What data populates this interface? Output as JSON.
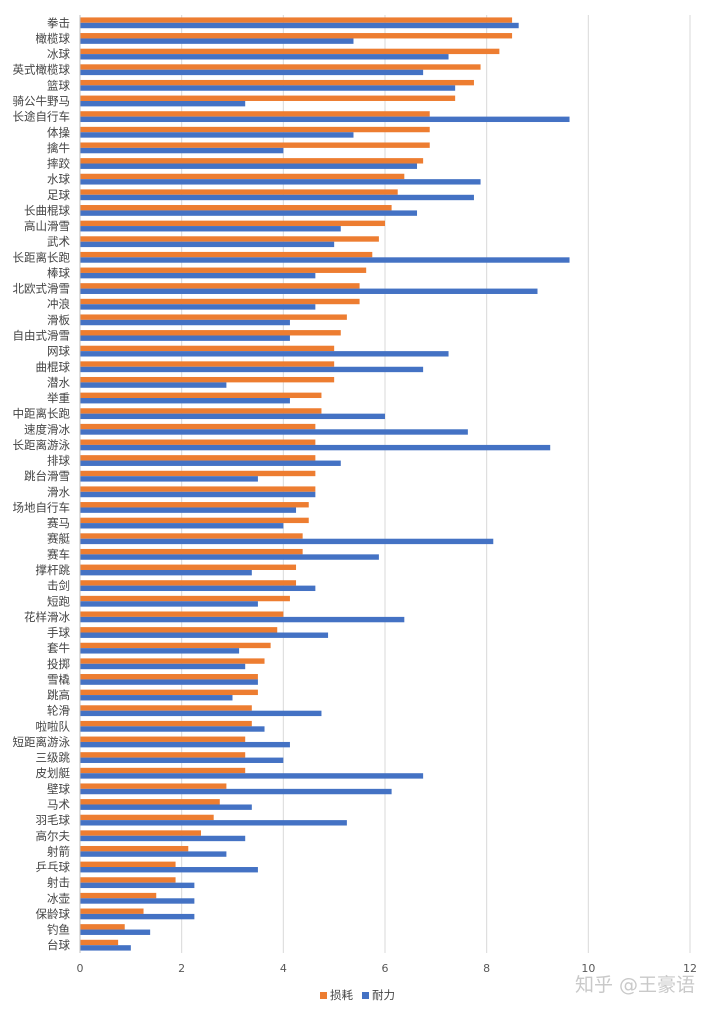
{
  "chart_data": {
    "type": "bar",
    "orientation": "horizontal",
    "categories": [
      "拳击",
      "橄榄球",
      "冰球",
      "英式橄榄球",
      "篮球",
      "骑公牛野马",
      "长途自行车",
      "体操",
      "擒牛",
      "摔跤",
      "水球",
      "足球",
      "长曲棍球",
      "高山滑雪",
      "武术",
      "长距离长跑",
      "棒球",
      "北欧式滑雪",
      "冲浪",
      "滑板",
      "自由式滑雪",
      "网球",
      "曲棍球",
      "潜水",
      "举重",
      "中距离长跑",
      "速度滑冰",
      "长距离游泳",
      "排球",
      "跳台滑雪",
      "滑水",
      "场地自行车",
      "赛马",
      "赛艇",
      "赛车",
      "撑杆跳",
      "击剑",
      "短跑",
      "花样滑冰",
      "手球",
      "套牛",
      "投掷",
      "雪橇",
      "跳高",
      "轮滑",
      "啦啦队",
      "短距离游泳",
      "三级跳",
      "皮划艇",
      "壁球",
      "马术",
      "羽毛球",
      "高尔夫",
      "射箭",
      "乒乓球",
      "射击",
      "冰壶",
      "保龄球",
      "钓鱼",
      "台球"
    ],
    "series": [
      {
        "name": "损耗",
        "color": "#ED7D31",
        "values": [
          8.5,
          8.5,
          8.25,
          7.88,
          7.75,
          7.38,
          6.88,
          6.88,
          6.88,
          6.75,
          6.38,
          6.25,
          6.13,
          6.0,
          5.88,
          5.75,
          5.63,
          5.5,
          5.5,
          5.25,
          5.13,
          5.0,
          5.0,
          5.0,
          4.75,
          4.75,
          4.63,
          4.63,
          4.63,
          4.63,
          4.63,
          4.5,
          4.5,
          4.38,
          4.38,
          4.25,
          4.25,
          4.13,
          4.0,
          3.88,
          3.75,
          3.63,
          3.5,
          3.5,
          3.38,
          3.38,
          3.25,
          3.25,
          3.25,
          2.88,
          2.75,
          2.63,
          2.38,
          2.13,
          1.88,
          1.88,
          1.5,
          1.25,
          0.88,
          0.75
        ]
      },
      {
        "name": "耐力",
        "color": "#4472C4",
        "values": [
          8.63,
          5.38,
          7.25,
          6.75,
          7.38,
          3.25,
          9.63,
          5.38,
          4.0,
          6.63,
          7.88,
          7.75,
          6.63,
          5.13,
          5.0,
          9.63,
          4.63,
          9.0,
          4.63,
          4.13,
          4.13,
          7.25,
          6.75,
          2.88,
          4.13,
          6.0,
          7.63,
          9.25,
          5.13,
          3.5,
          4.63,
          4.25,
          4.0,
          8.13,
          5.88,
          3.38,
          4.63,
          3.5,
          6.38,
          4.88,
          3.13,
          3.25,
          3.5,
          3.0,
          4.75,
          3.63,
          4.13,
          4.0,
          6.75,
          6.13,
          3.38,
          5.25,
          3.25,
          2.88,
          3.5,
          2.25,
          2.25,
          2.25,
          1.38,
          1.0
        ]
      }
    ],
    "x_ticks": [
      "0",
      "2",
      "4",
      "6",
      "8",
      "10",
      "12"
    ],
    "xlim": [
      0,
      12
    ],
    "grid": "vertical",
    "legend_position": "bottom"
  },
  "legend": {
    "items": [
      {
        "label": "损耗",
        "color": "#ED7D31"
      },
      {
        "label": "耐力",
        "color": "#4472C4"
      }
    ]
  },
  "watermark": {
    "text": "知乎 @王豪语"
  }
}
